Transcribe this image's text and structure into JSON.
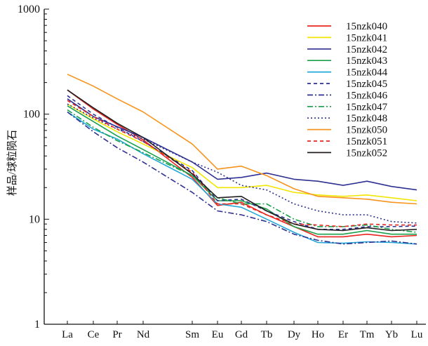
{
  "chart_data": {
    "type": "line",
    "title": "",
    "xlabel": "",
    "ylabel": "样品/球粒陨石",
    "yscale": "log",
    "ylim": [
      1,
      1000
    ],
    "y_ticks": [
      "1",
      "10",
      "100",
      "1000"
    ],
    "grid": false,
    "legend_position": "top-right",
    "categories": [
      "La",
      "Ce",
      "Pr",
      "Nd",
      "Sm",
      "Eu",
      "Gd",
      "Tb",
      "Dy",
      "Ho",
      "Er",
      "Tm",
      "Yb",
      "Lu"
    ],
    "series": [
      {
        "name": "15nzk040",
        "color": "#e8251f",
        "dash": "solid",
        "values": [
          170,
          112,
          80,
          57,
          25,
          13.5,
          14.5,
          11,
          8.5,
          6.8,
          6.8,
          7.2,
          6.8,
          7.0
        ]
      },
      {
        "name": "15nzk041",
        "color": "#f2e600",
        "dash": "solid",
        "values": [
          125,
          90,
          68,
          52,
          31,
          20,
          20,
          21,
          18,
          17,
          16.5,
          17,
          16,
          15
        ]
      },
      {
        "name": "15nzk042",
        "color": "#2e3192",
        "dash": "solid",
        "values": [
          140,
          95,
          76,
          60,
          35,
          24,
          25,
          27.5,
          24,
          23,
          21,
          23,
          20.5,
          19
        ]
      },
      {
        "name": "15nzk043",
        "color": "#1aa04a",
        "dash": "solid",
        "values": [
          120,
          85,
          62,
          46,
          26,
          15,
          15,
          12.5,
          8.5,
          7.2,
          7.2,
          7.8,
          7.2,
          7.2
        ]
      },
      {
        "name": "15nzk044",
        "color": "#21a8d8",
        "dash": "solid",
        "values": [
          105,
          72,
          58,
          42,
          24,
          14,
          13,
          10,
          7.5,
          6.0,
          5.9,
          6.1,
          6.0,
          5.8
        ]
      },
      {
        "name": "15nzk045",
        "color": "#2e3192",
        "dash": "dash",
        "values": [
          150,
          100,
          75,
          55,
          29,
          15,
          15.5,
          12,
          9.5,
          8.0,
          8.0,
          8.5,
          8.5,
          8.6
        ]
      },
      {
        "name": "15nzk046",
        "color": "#2e3192",
        "dash": "dashdot",
        "values": [
          105,
          68,
          48,
          35,
          18,
          12,
          11,
          9.5,
          7.2,
          6.3,
          5.8,
          6.0,
          6.2,
          5.8
        ]
      },
      {
        "name": "15nzk047",
        "color": "#1aa04a",
        "dash": "dashdot",
        "values": [
          110,
          75,
          56,
          43,
          26,
          16,
          14,
          14,
          10,
          8.5,
          8.5,
          8.8,
          8.0,
          7.5
        ]
      },
      {
        "name": "15nzk048",
        "color": "#2e3192",
        "dash": "dot",
        "values": [
          125,
          92,
          72,
          58,
          35,
          28,
          21,
          19,
          14,
          12,
          11,
          11,
          9.5,
          9.2
        ]
      },
      {
        "name": "15nzk050",
        "color": "#f7941d",
        "dash": "solid",
        "values": [
          240,
          185,
          140,
          105,
          52,
          30,
          32,
          26,
          19.5,
          16.5,
          16,
          15.5,
          14.5,
          14
        ]
      },
      {
        "name": "15nzk051",
        "color": "#e8251f",
        "dash": "dash",
        "values": [
          135,
          95,
          72,
          55,
          28,
          14,
          14,
          11,
          9,
          8.8,
          8.5,
          9.0,
          8.8,
          8.8
        ]
      },
      {
        "name": "15nzk052",
        "color": "#231f20",
        "dash": "solid",
        "values": [
          170,
          115,
          82,
          60,
          27,
          16,
          16.5,
          12,
          9,
          8.0,
          7.8,
          8.3,
          7.8,
          8.0
        ]
      }
    ]
  }
}
